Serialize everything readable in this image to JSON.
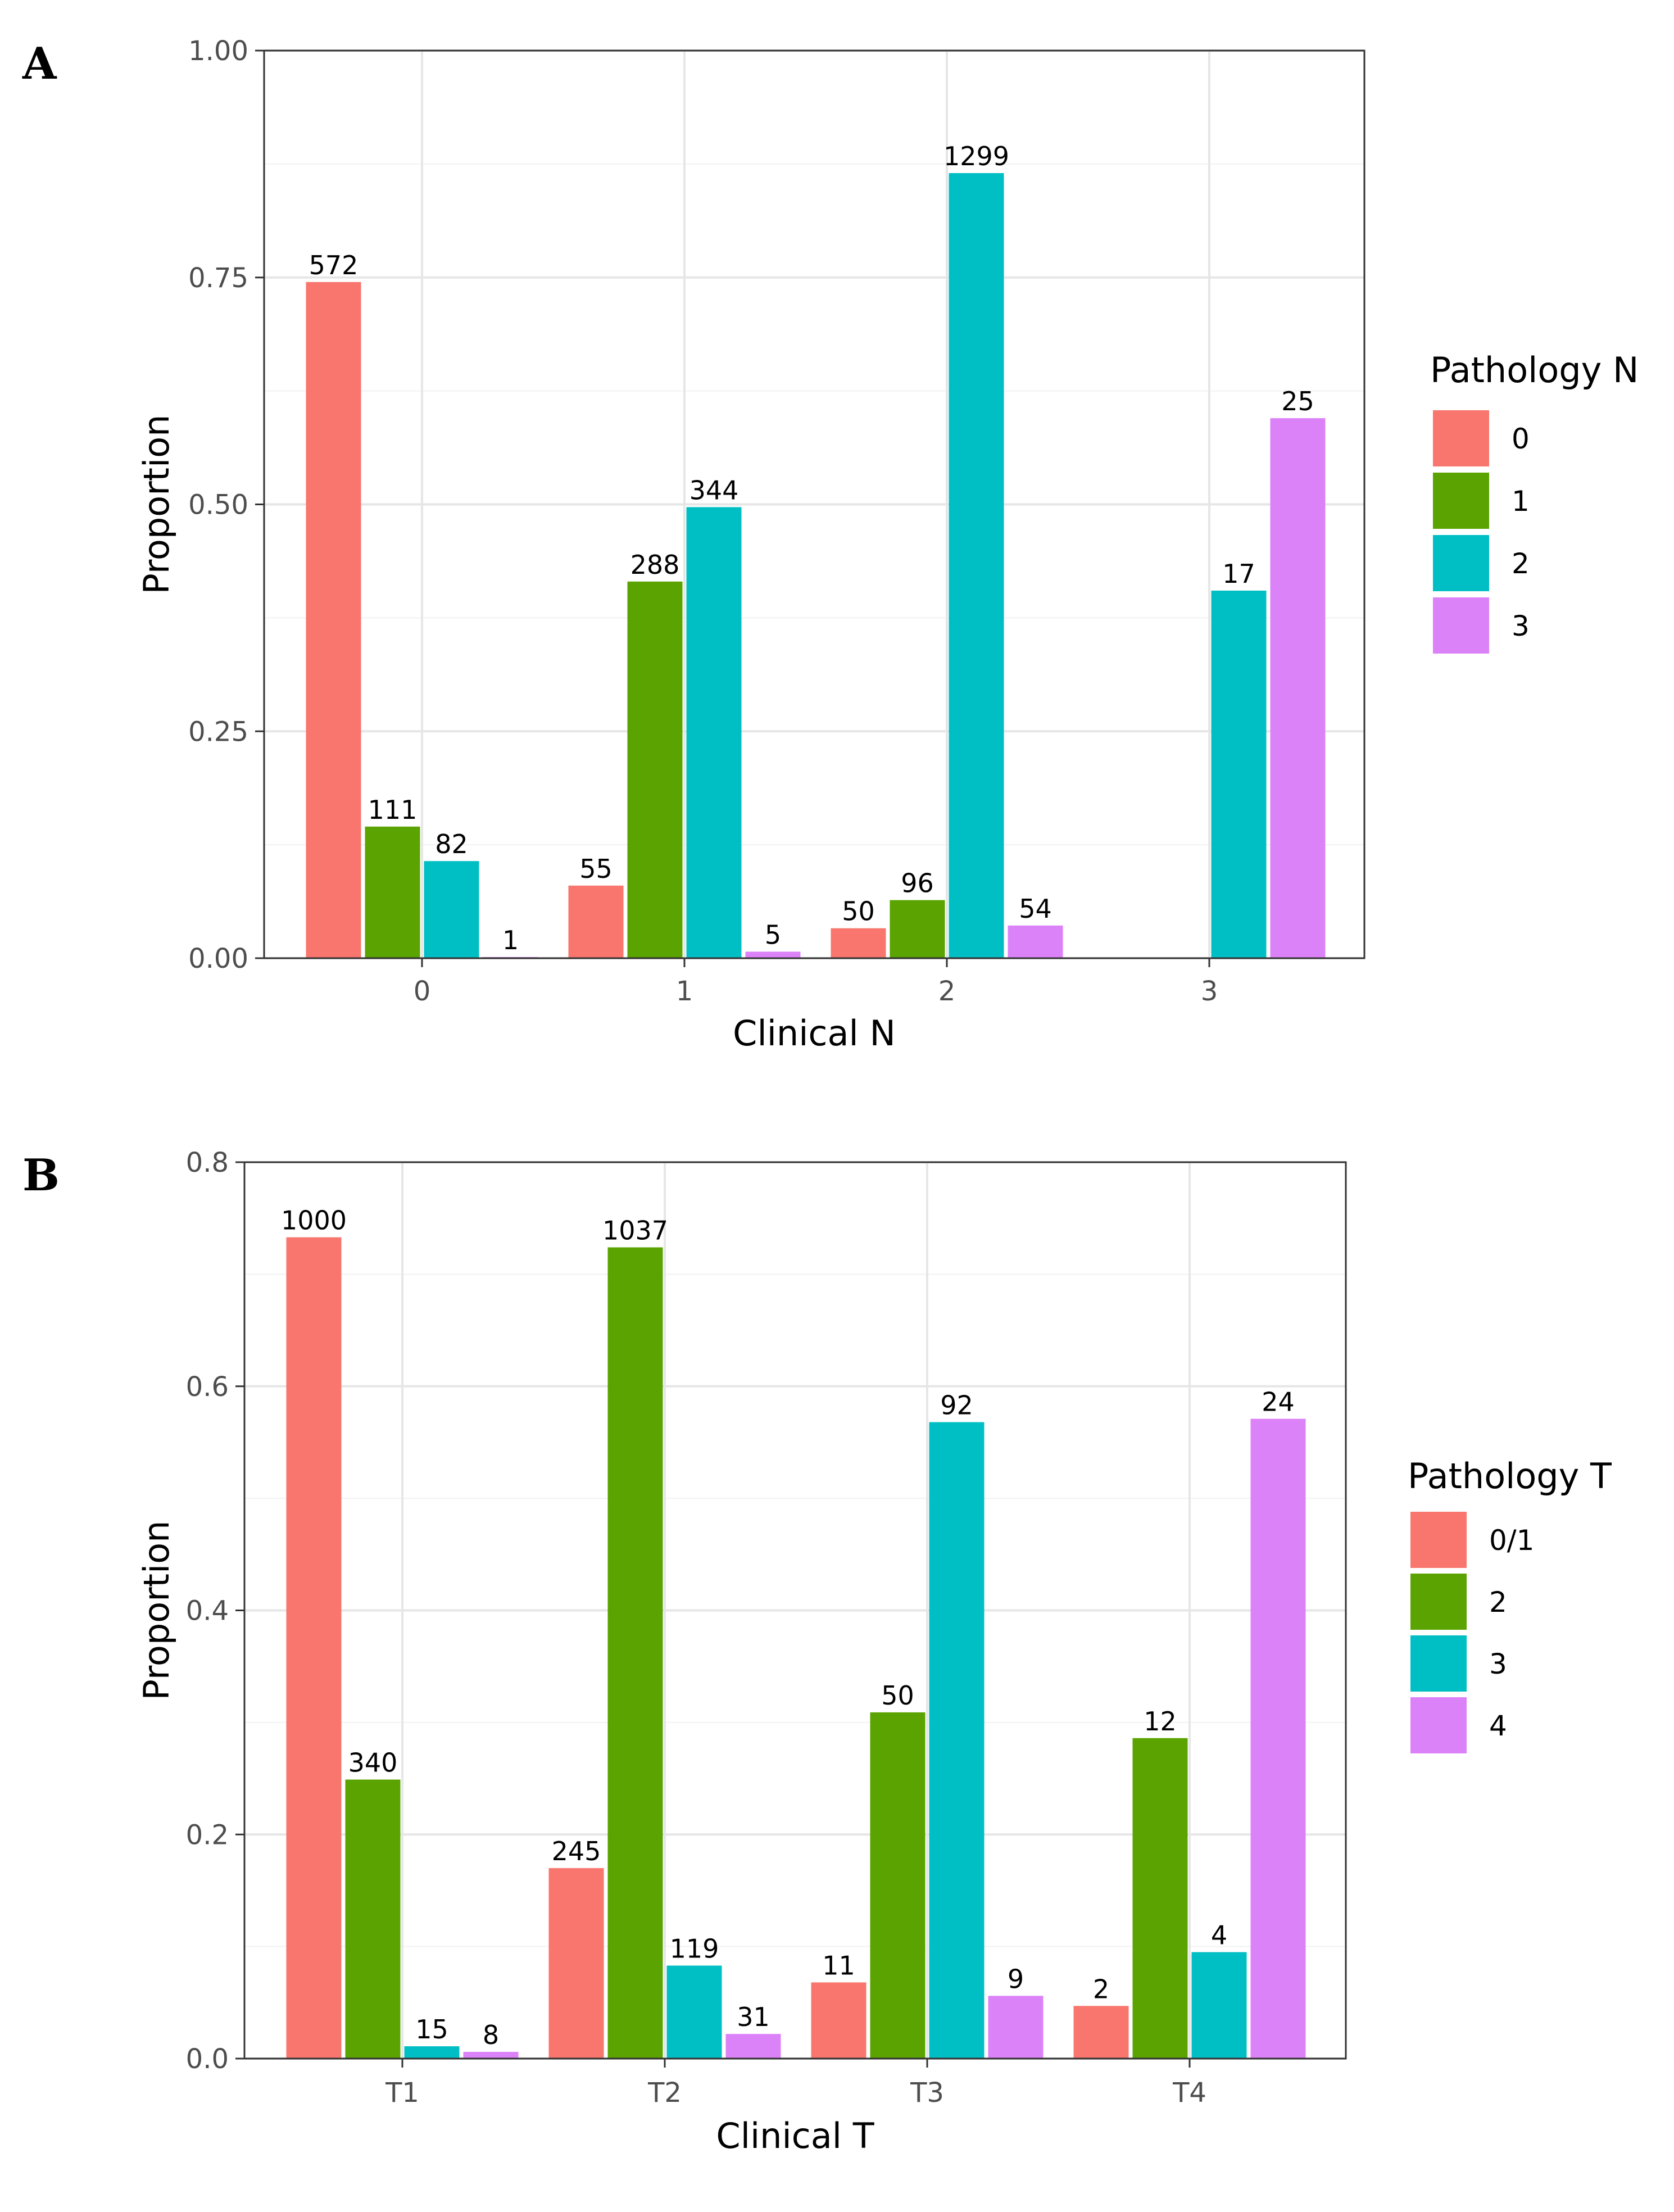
{
  "chart_data": [
    {
      "panel": "A",
      "type": "bar",
      "xlabel": "Clinical N",
      "ylabel": "Proportion",
      "ylim": [
        0,
        1.0
      ],
      "yticks": [
        "0.00",
        "0.25",
        "0.50",
        "0.75",
        "1.00"
      ],
      "ytick_values": [
        0,
        0.25,
        0.5,
        0.75,
        1.0
      ],
      "legend_title": "Pathology N",
      "categories": [
        "0",
        "1",
        "2",
        "3"
      ],
      "series": [
        {
          "name": "0",
          "color": "#F8766D",
          "values": [
            0.745,
            0.08,
            0.033,
            null
          ],
          "labels": [
            "572",
            "55",
            "50",
            ""
          ]
        },
        {
          "name": "1",
          "color": "#5AA300",
          "values": [
            0.145,
            0.415,
            0.064,
            null
          ],
          "labels": [
            "111",
            "288",
            "96",
            ""
          ]
        },
        {
          "name": "2",
          "color": "#00BFC4",
          "values": [
            0.107,
            0.497,
            0.865,
            0.405
          ],
          "labels": [
            "82",
            "344",
            "1299",
            "17"
          ]
        },
        {
          "name": "3",
          "color": "#DC82F8",
          "values": [
            0.0013,
            0.0072,
            0.036,
            0.595
          ],
          "labels": [
            "1",
            "5",
            "54",
            "25"
          ]
        }
      ]
    },
    {
      "panel": "B",
      "type": "bar",
      "xlabel": "Clinical T",
      "ylabel": "Proportion",
      "ylim": [
        0,
        0.8
      ],
      "yticks": [
        "0.0",
        "0.2",
        "0.4",
        "0.6",
        "0.8"
      ],
      "ytick_values": [
        0,
        0.2,
        0.4,
        0.6,
        0.8
      ],
      "legend_title": "Pathology T",
      "categories": [
        "T1",
        "T2",
        "T3",
        "T4"
      ],
      "series": [
        {
          "name": "0/1",
          "color": "#F8766D",
          "values": [
            0.733,
            0.17,
            0.068,
            0.047
          ],
          "labels": [
            "1000",
            "245",
            "11",
            "2"
          ]
        },
        {
          "name": "2",
          "color": "#5AA300",
          "values": [
            0.249,
            0.724,
            0.309,
            0.286
          ],
          "labels": [
            "340",
            "1037",
            "50",
            "12"
          ]
        },
        {
          "name": "3",
          "color": "#00BFC4",
          "values": [
            0.011,
            0.083,
            0.568,
            0.095
          ],
          "labels": [
            "15",
            "119",
            "92",
            "4"
          ]
        },
        {
          "name": "4",
          "color": "#DC82F8",
          "values": [
            0.006,
            0.022,
            0.056,
            0.571
          ],
          "labels": [
            "8",
            "31",
            "9",
            "24"
          ]
        }
      ]
    }
  ]
}
